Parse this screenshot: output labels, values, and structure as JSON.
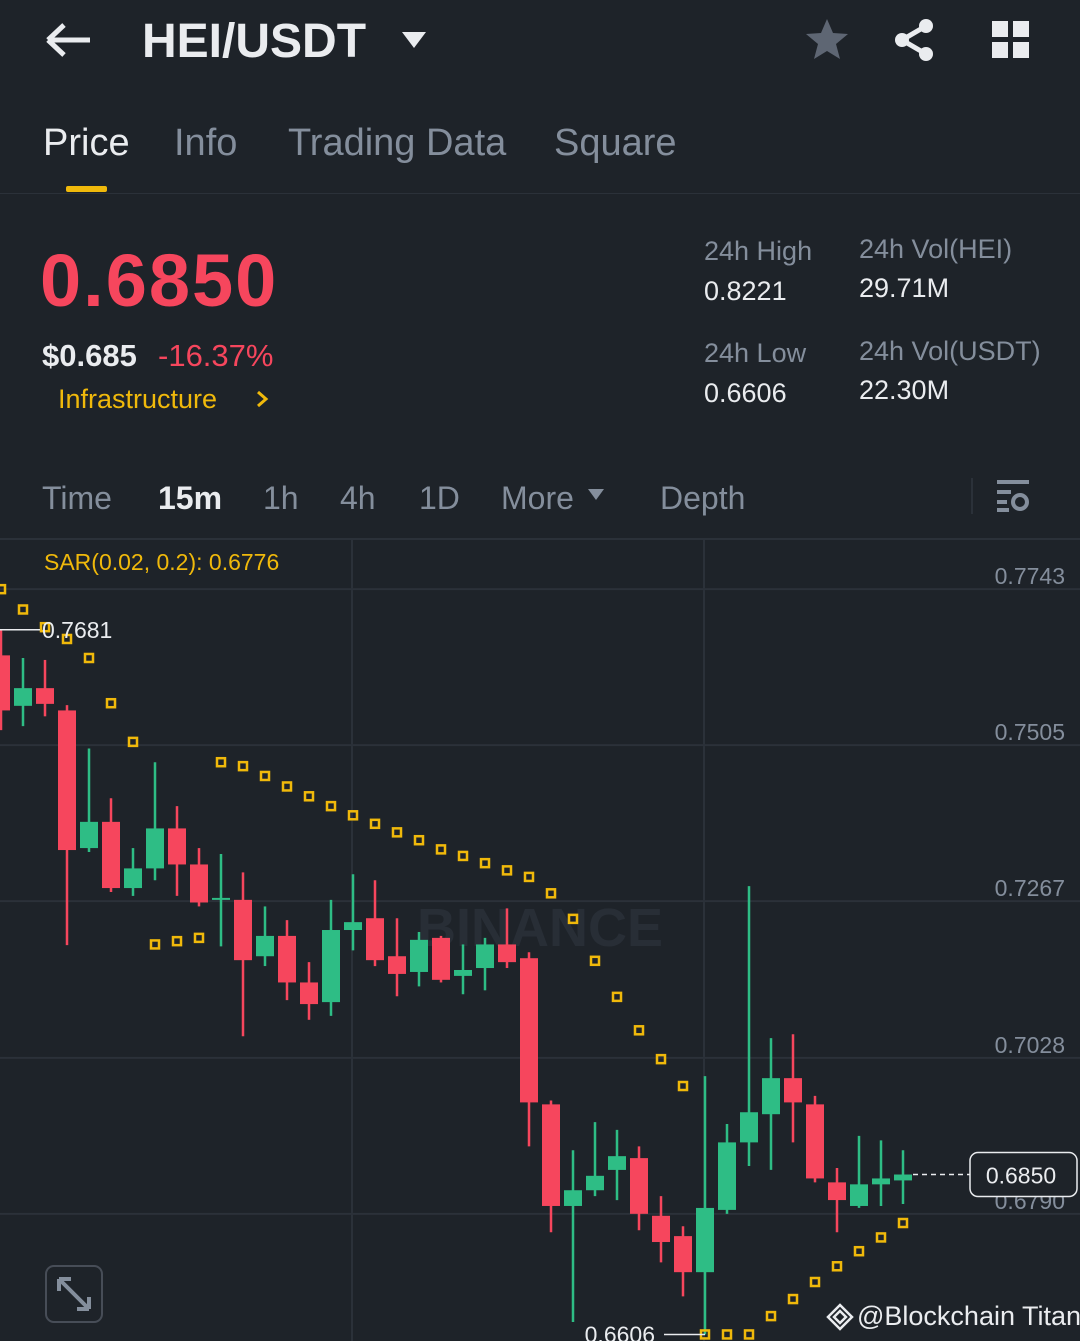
{
  "header": {
    "title": "HEI/USDT"
  },
  "tabs": [
    "Price",
    "Info",
    "Trading Data",
    "Square"
  ],
  "ticker": {
    "price": "0.6850",
    "usd": "$0.685",
    "change": "-16.37%",
    "tag": "Infrastructure",
    "stats": [
      {
        "label": "24h High",
        "value": "0.8221"
      },
      {
        "label": "24h Vol(HEI)",
        "value": "29.71M"
      },
      {
        "label": "24h Low",
        "value": "0.6606"
      },
      {
        "label": "24h Vol(USDT)",
        "value": "22.30M"
      }
    ]
  },
  "intervals": [
    "Time",
    "15m",
    "1h",
    "4h",
    "1D",
    "More",
    "Depth"
  ],
  "chart_data": {
    "type": "candlestick",
    "indicator": "SAR(0.02, 0.2): 0.6776",
    "watermark": "BINANCE",
    "up_color": "#2ebd85",
    "down_color": "#f6465d",
    "sar_color": "#f0b90b",
    "open": [
      0.7642,
      0.7565,
      0.7592,
      0.7558,
      0.7348,
      0.7388,
      0.7287,
      0.7317,
      0.7378,
      0.7323,
      0.7269,
      0.7269,
      0.7183,
      0.7214,
      0.7143,
      0.7113,
      0.7223,
      0.7241,
      0.7183,
      0.7159,
      0.7211,
      0.7153,
      0.7165,
      0.7201,
      0.718,
      0.6957,
      0.6802,
      0.6826,
      0.6857,
      0.6875,
      0.6787,
      0.6756,
      0.6701,
      0.6796,
      0.6899,
      0.6942,
      0.6997,
      0.6957,
      0.6838,
      0.6802,
      0.6835,
      0.6841
    ],
    "high": [
      0.7681,
      0.7638,
      0.7635,
      0.7566,
      0.75,
      0.7424,
      0.7348,
      0.7479,
      0.7412,
      0.7348,
      0.7339,
      0.7311,
      0.7259,
      0.7238,
      0.7174,
      0.7269,
      0.7308,
      0.7299,
      0.7241,
      0.722,
      0.7214,
      0.7201,
      0.7211,
      0.7256,
      0.7189,
      0.6963,
      0.6887,
      0.693,
      0.6918,
      0.6893,
      0.6817,
      0.6771,
      0.7,
      0.6927,
      0.729,
      0.7058,
      0.7064,
      0.697,
      0.686,
      0.6909,
      0.6902,
      0.6887
    ],
    "low": [
      0.7528,
      0.7534,
      0.7549,
      0.72,
      0.7342,
      0.7281,
      0.7275,
      0.7299,
      0.7275,
      0.7259,
      0.7198,
      0.7061,
      0.7168,
      0.7116,
      0.7086,
      0.7092,
      0.7192,
      0.7168,
      0.7122,
      0.7137,
      0.7143,
      0.7125,
      0.7131,
      0.7165,
      0.6893,
      0.6762,
      0.6625,
      0.6817,
      0.6811,
      0.6765,
      0.6716,
      0.6664,
      0.6606,
      0.679,
      0.6863,
      0.6857,
      0.6899,
      0.6838,
      0.6762,
      0.6799,
      0.6802,
      0.6805
    ],
    "close": [
      0.7558,
      0.7592,
      0.7568,
      0.7345,
      0.7388,
      0.7287,
      0.7317,
      0.7378,
      0.7323,
      0.7265,
      0.7272,
      0.7177,
      0.7214,
      0.7143,
      0.711,
      0.7223,
      0.7235,
      0.7177,
      0.7156,
      0.7208,
      0.7147,
      0.7162,
      0.7201,
      0.7174,
      0.696,
      0.6802,
      0.6826,
      0.6848,
      0.6878,
      0.679,
      0.6747,
      0.6701,
      0.6799,
      0.6899,
      0.6945,
      0.6997,
      0.696,
      0.6844,
      0.6811,
      0.6835,
      0.6844,
      0.685
    ],
    "sar": [
      0.7743,
      0.7712,
      0.7685,
      0.7667,
      0.7638,
      0.7569,
      0.751,
      0.7201,
      0.7206,
      0.7211,
      0.7479,
      0.7473,
      0.7458,
      0.7442,
      0.7427,
      0.7412,
      0.7398,
      0.7385,
      0.7372,
      0.736,
      0.7346,
      0.7336,
      0.7325,
      0.7314,
      0.7304,
      0.7279,
      0.724,
      0.7176,
      0.7121,
      0.707,
      0.7026,
      0.6985,
      0.6606,
      0.6606,
      0.6606,
      0.6634,
      0.666,
      0.6686,
      0.671,
      0.6733,
      0.6754,
      0.6776
    ],
    "ylim": [
      0.6596,
      0.7818
    ],
    "yticks": [
      0.7743,
      0.7505,
      0.7267,
      0.7028,
      {
        "value": 0.679,
        "label": "0.6790"
      }
    ],
    "last_price": {
      "value": 0.685,
      "label": "0.6850"
    },
    "grid": true
  },
  "footer": {
    "handle": "@Blockchain Titan"
  }
}
